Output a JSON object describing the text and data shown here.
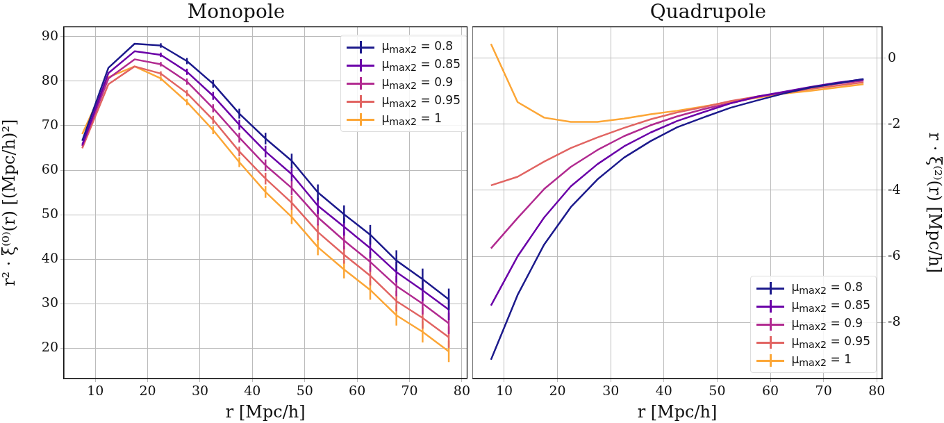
{
  "chart_data": [
    {
      "type": "line",
      "title": "Monopole",
      "xlabel": "r [Mpc/h]",
      "ylabel": "r² · ξ⁽⁰⁾(r) [(Mpc/h)²]",
      "x": [
        7.5,
        12.5,
        17.5,
        22.5,
        27.5,
        32.5,
        37.5,
        42.5,
        47.5,
        52.5,
        57.5,
        62.5,
        67.5,
        72.5,
        77.5
      ],
      "xlim": [
        4,
        81
      ],
      "xticks": [
        10,
        20,
        30,
        40,
        50,
        60,
        70,
        80
      ],
      "ylim": [
        13.2,
        92.2
      ],
      "yticks": [
        20,
        30,
        40,
        50,
        60,
        70,
        80,
        90
      ],
      "grid": true,
      "legend": "top right",
      "series": [
        {
          "name": "μ$_{max2}$ = 0.8",
          "color": "#1c1a8c",
          "values": [
            66.6,
            83.0,
            88.4,
            88.0,
            84.5,
            79.4,
            72.7,
            67.1,
            62.1,
            55.0,
            50.1,
            45.5,
            39.7,
            35.5,
            31.0
          ],
          "errors": [
            null,
            null,
            null,
            0.5,
            0.7,
            0.9,
            1.1,
            1.3,
            1.6,
            1.8,
            2.0,
            2.2,
            2.3,
            2.4,
            2.4
          ]
        },
        {
          "name": "μ$_{max2}$ = 0.85",
          "color": "#6a00a8",
          "values": [
            65.7,
            81.8,
            86.7,
            85.9,
            82.1,
            76.7,
            70.2,
            64.2,
            59.1,
            52.0,
            47.3,
            42.5,
            37.1,
            33.0,
            28.7
          ],
          "errors": [
            null,
            null,
            null,
            0.5,
            0.7,
            0.9,
            1.1,
            1.3,
            1.6,
            1.8,
            2.0,
            2.2,
            2.3,
            2.4,
            2.4
          ]
        },
        {
          "name": "μ$_{max2}$ = 0.9",
          "color": "#b12a90",
          "values": [
            65.4,
            80.6,
            84.9,
            83.8,
            79.9,
            73.9,
            67.3,
            61.1,
            56.0,
            49.4,
            44.2,
            39.4,
            34.0,
            30.0,
            25.6
          ],
          "errors": [
            null,
            null,
            null,
            0.5,
            0.7,
            0.9,
            1.1,
            1.3,
            1.6,
            1.8,
            2.0,
            2.2,
            2.3,
            2.4,
            2.4
          ]
        },
        {
          "name": "μ$_{max2}$ = 0.95",
          "color": "#e16462",
          "values": [
            64.9,
            79.3,
            83.3,
            81.7,
            77.3,
            71.3,
            64.2,
            58.1,
            52.7,
            46.1,
            41.0,
            36.3,
            30.6,
            26.8,
            22.5
          ],
          "errors": [
            null,
            null,
            null,
            0.5,
            0.7,
            0.9,
            1.1,
            1.3,
            1.6,
            1.8,
            2.0,
            2.2,
            2.3,
            2.4,
            2.4
          ]
        },
        {
          "name": "μ$_{max2}$ = 1",
          "color": "#fca636",
          "values": [
            68.1,
            80.9,
            83.3,
            80.6,
            75.3,
            69.0,
            61.8,
            55.1,
            49.5,
            42.7,
            37.7,
            33.1,
            27.4,
            23.7,
            19.3
          ],
          "errors": [
            null,
            null,
            null,
            0.5,
            0.7,
            0.9,
            1.1,
            1.3,
            1.6,
            1.8,
            2.0,
            2.2,
            2.3,
            2.4,
            2.4
          ]
        }
      ]
    },
    {
      "type": "line",
      "title": "Quadrupole",
      "xlabel": "r [Mpc/h]",
      "y2label": "r · ξ⁽²⁾(r) [Mpc/h]",
      "x": [
        7.5,
        12.5,
        17.5,
        22.5,
        27.5,
        32.5,
        37.5,
        42.5,
        47.5,
        52.5,
        57.5,
        62.5,
        67.5,
        72.5,
        77.5
      ],
      "xlim": [
        4,
        81
      ],
      "xticks": [
        10,
        20,
        30,
        40,
        50,
        60,
        70,
        80
      ],
      "y2lim": [
        -9.7,
        0.95
      ],
      "y2ticks": [
        -8,
        -6,
        -4,
        -2,
        0
      ],
      "grid": true,
      "legend": "bottom right",
      "series": [
        {
          "name": "μ$_{max2}$ = 0.8",
          "color": "#1c1a8c",
          "axis": "y2",
          "values": [
            -9.13,
            -7.17,
            -5.64,
            -4.51,
            -3.67,
            -3.01,
            -2.51,
            -2.09,
            -1.79,
            -1.5,
            -1.28,
            -1.07,
            -0.89,
            -0.76,
            -0.63
          ]
        },
        {
          "name": "μ$_{max2}$ = 0.85",
          "color": "#6a00a8",
          "axis": "y2",
          "values": [
            -7.49,
            -6.0,
            -4.82,
            -3.88,
            -3.21,
            -2.67,
            -2.25,
            -1.9,
            -1.63,
            -1.37,
            -1.16,
            -1.02,
            -0.87,
            -0.74,
            -0.64
          ]
        },
        {
          "name": "μ$_{max2}$ = 0.9",
          "color": "#b12a90",
          "axis": "y2",
          "values": [
            -5.76,
            -4.84,
            -3.96,
            -3.29,
            -2.78,
            -2.36,
            -2.03,
            -1.76,
            -1.54,
            -1.36,
            -1.18,
            -1.03,
            -0.89,
            -0.77,
            -0.68
          ]
        },
        {
          "name": "μ$_{max2}$ = 0.95",
          "color": "#e16462",
          "axis": "y2",
          "values": [
            -3.85,
            -3.59,
            -3.13,
            -2.72,
            -2.4,
            -2.11,
            -1.85,
            -1.64,
            -1.48,
            -1.3,
            -1.16,
            -1.05,
            -0.93,
            -0.83,
            -0.73
          ]
        },
        {
          "name": "μ$_{max2}$ = 1",
          "color": "#fca636",
          "axis": "y2",
          "values": [
            0.43,
            -1.33,
            -1.8,
            -1.93,
            -1.93,
            -1.83,
            -1.7,
            -1.59,
            -1.46,
            -1.32,
            -1.2,
            -1.07,
            -0.99,
            -0.89,
            -0.79
          ]
        }
      ]
    }
  ]
}
